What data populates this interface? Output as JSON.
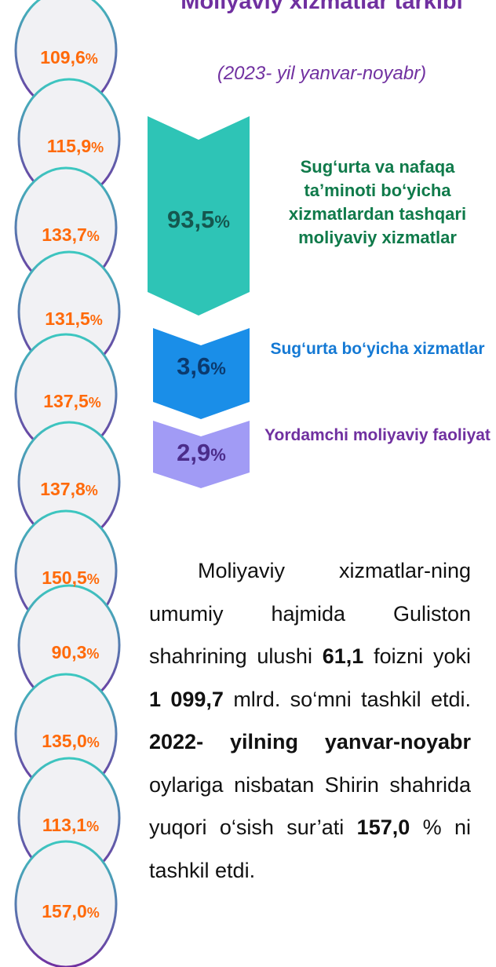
{
  "header": {
    "title": "Moliyaviy xizmatlar tarkibi",
    "subtitle": "(2023- yil yanvar-noyabr)"
  },
  "growth": [
    {
      "value": "109,6",
      "unit": "%"
    },
    {
      "value": "115,9",
      "unit": "%"
    },
    {
      "value": "133,7",
      "unit": "%"
    },
    {
      "value": "131,5",
      "unit": "%"
    },
    {
      "value": "137,5",
      "unit": "%"
    },
    {
      "value": "137,8",
      "unit": "%"
    },
    {
      "value": "150,5",
      "unit": "%"
    },
    {
      "value": "90,3",
      "unit": "%"
    },
    {
      "value": "135,0",
      "unit": "%"
    },
    {
      "value": "113,1",
      "unit": "%"
    },
    {
      "value": "157,0",
      "unit": "%"
    }
  ],
  "structure": [
    {
      "value": "93,5",
      "unit": "%",
      "label": "Sug‘urta va nafaqa ta’minoti bo‘yicha xizmatlardan tashqari moliyaviy xizmatlar"
    },
    {
      "value": "3,6",
      "unit": "%",
      "label": "Sug‘urta bo‘yicha xizmatlar"
    },
    {
      "value": "2,9",
      "unit": "%",
      "label": "Yordamchi moliyaviy faoliyat"
    }
  ],
  "paragraph": [
    {
      "text": "Moliyaviy xizmatlar-ning umumiy hajmida Guliston shahrining ulushi ",
      "bold": false
    },
    {
      "text": "61,1",
      "bold": true
    },
    {
      "text": " foizni yoki ",
      "bold": false
    },
    {
      "text": "1 099,7",
      "bold": true
    },
    {
      "text": " mlrd. so‘mni tashkil etdi. ",
      "bold": false
    },
    {
      "text": "2022- yilning yanvar-noyabr",
      "bold": true
    },
    {
      "text": " oylariga nisbatan Shirin shahrida yuqori o‘sish sur’ati ",
      "bold": false
    },
    {
      "text": "157,0",
      "bold": true
    },
    {
      "text": " % ni tashkil etdi.",
      "bold": false
    }
  ]
}
